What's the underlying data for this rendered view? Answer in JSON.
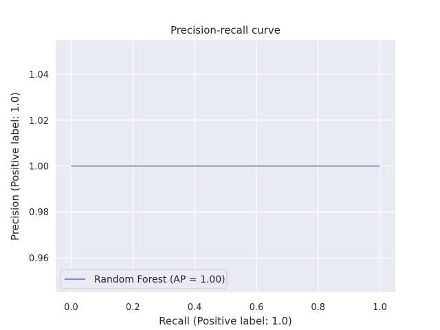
{
  "chart_data": {
    "type": "line",
    "title": "Precision-recall curve",
    "xlabel": "Recall (Positive label: 1.0)",
    "ylabel": "Precision (Positive label: 1.0)",
    "xlim": [
      -0.05,
      1.05
    ],
    "ylim": [
      0.945,
      1.055
    ],
    "xticks": [
      0.0,
      0.2,
      0.4,
      0.6,
      0.8,
      1.0
    ],
    "xtick_labels": [
      "0.0",
      "0.2",
      "0.4",
      "0.6",
      "0.8",
      "1.0"
    ],
    "yticks": [
      0.96,
      0.98,
      1.0,
      1.02,
      1.04
    ],
    "ytick_labels": [
      "0.96",
      "0.98",
      "1.00",
      "1.02",
      "1.04"
    ],
    "grid": true,
    "legend_position": "lower-left",
    "series": [
      {
        "name": "Random Forest (AP = 1.00)",
        "color": "#4c72b0",
        "x": [
          0.0,
          1.0
        ],
        "y": [
          1.0,
          1.0
        ]
      }
    ]
  },
  "colors": {
    "plot_background": "#eaeaf2",
    "grid": "#ffffff",
    "text": "#262626"
  }
}
